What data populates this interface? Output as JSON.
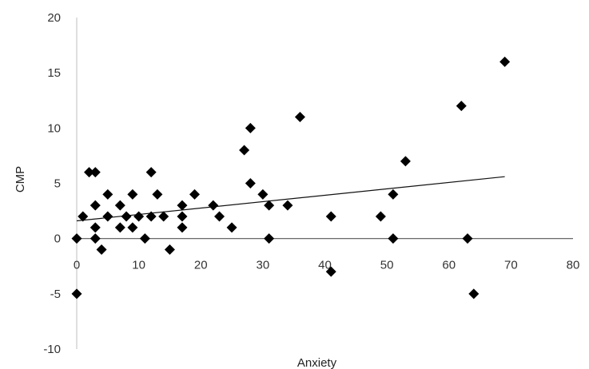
{
  "chart_data": {
    "type": "scatter",
    "title": "",
    "xlabel": "Anxiety",
    "ylabel": "CMP",
    "xlim": [
      0,
      80
    ],
    "ylim": [
      -10,
      20
    ],
    "x_ticks": [
      0,
      10,
      20,
      30,
      40,
      50,
      60,
      70,
      80
    ],
    "y_ticks": [
      -10,
      -5,
      0,
      5,
      10,
      15,
      20
    ],
    "x_tick_labels": [
      "0",
      "10",
      "20",
      "30",
      "40",
      "50",
      "60",
      "70",
      "80"
    ],
    "y_tick_labels": [
      "-10",
      "-5",
      "0",
      "5",
      "10",
      "15",
      "20"
    ],
    "grid": false,
    "legend": "none",
    "marker": "diamond",
    "marker_color": "#000000",
    "trendline": {
      "type": "linear",
      "x": [
        0,
        69
      ],
      "y": [
        1.6,
        5.6
      ]
    },
    "points": [
      [
        0,
        0
      ],
      [
        0,
        -5
      ],
      [
        1,
        2
      ],
      [
        2,
        6
      ],
      [
        3,
        6
      ],
      [
        3,
        3
      ],
      [
        3,
        1
      ],
      [
        3,
        0
      ],
      [
        4,
        -1
      ],
      [
        5,
        4
      ],
      [
        5,
        2
      ],
      [
        7,
        3
      ],
      [
        7,
        1
      ],
      [
        8,
        2
      ],
      [
        9,
        4
      ],
      [
        9,
        1
      ],
      [
        10,
        2
      ],
      [
        11,
        0
      ],
      [
        12,
        6
      ],
      [
        12,
        2
      ],
      [
        13,
        4
      ],
      [
        14,
        2
      ],
      [
        15,
        -1
      ],
      [
        17,
        3
      ],
      [
        17,
        2
      ],
      [
        17,
        1
      ],
      [
        19,
        4
      ],
      [
        22,
        3
      ],
      [
        23,
        2
      ],
      [
        25,
        1
      ],
      [
        27,
        8
      ],
      [
        28,
        10
      ],
      [
        28,
        5
      ],
      [
        30,
        4
      ],
      [
        31,
        3
      ],
      [
        31,
        0
      ],
      [
        34,
        3
      ],
      [
        36,
        11
      ],
      [
        41,
        2
      ],
      [
        41,
        -3
      ],
      [
        49,
        2
      ],
      [
        51,
        4
      ],
      [
        51,
        0
      ],
      [
        53,
        7
      ],
      [
        62,
        12
      ],
      [
        63,
        0
      ],
      [
        64,
        -5
      ],
      [
        69,
        16
      ]
    ]
  }
}
